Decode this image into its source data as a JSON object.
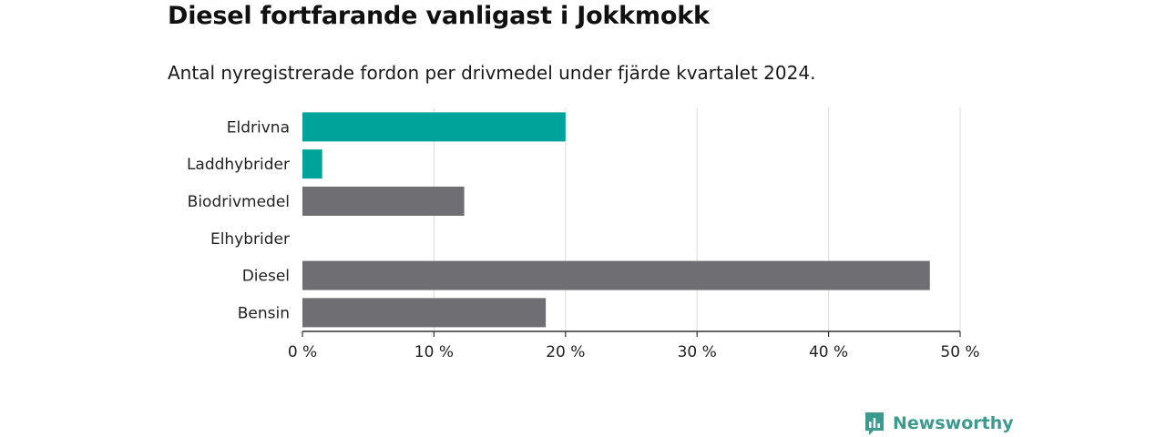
{
  "title": "Diesel fortfarande vanligast i Jokkmokk",
  "subtitle": "Antal nyregistrerade fordon per drivmedel under fjärde kvartalet 2024.",
  "brand": {
    "name": "Newsworthy",
    "color": "#3d9a8f"
  },
  "colors": {
    "highlight": "#00a39a",
    "default": "#6f6e72",
    "grid": "#dddddd",
    "axis": "#333333"
  },
  "chart_data": {
    "type": "bar",
    "orientation": "horizontal",
    "categories": [
      "Eldrivna",
      "Laddhybrider",
      "Biodrivmedel",
      "Elhybrider",
      "Diesel",
      "Bensin"
    ],
    "values": [
      20.0,
      1.5,
      12.3,
      0,
      47.7,
      18.5
    ],
    "highlighted": [
      true,
      true,
      false,
      false,
      false,
      false
    ],
    "xlim": [
      0,
      50
    ],
    "xticks": [
      0,
      10,
      20,
      30,
      40,
      50
    ],
    "xtick_labels": [
      "0 %",
      "10 %",
      "20 %",
      "30 %",
      "40 %",
      "50 %"
    ],
    "xlabel": "",
    "ylabel": "",
    "grid": true
  }
}
